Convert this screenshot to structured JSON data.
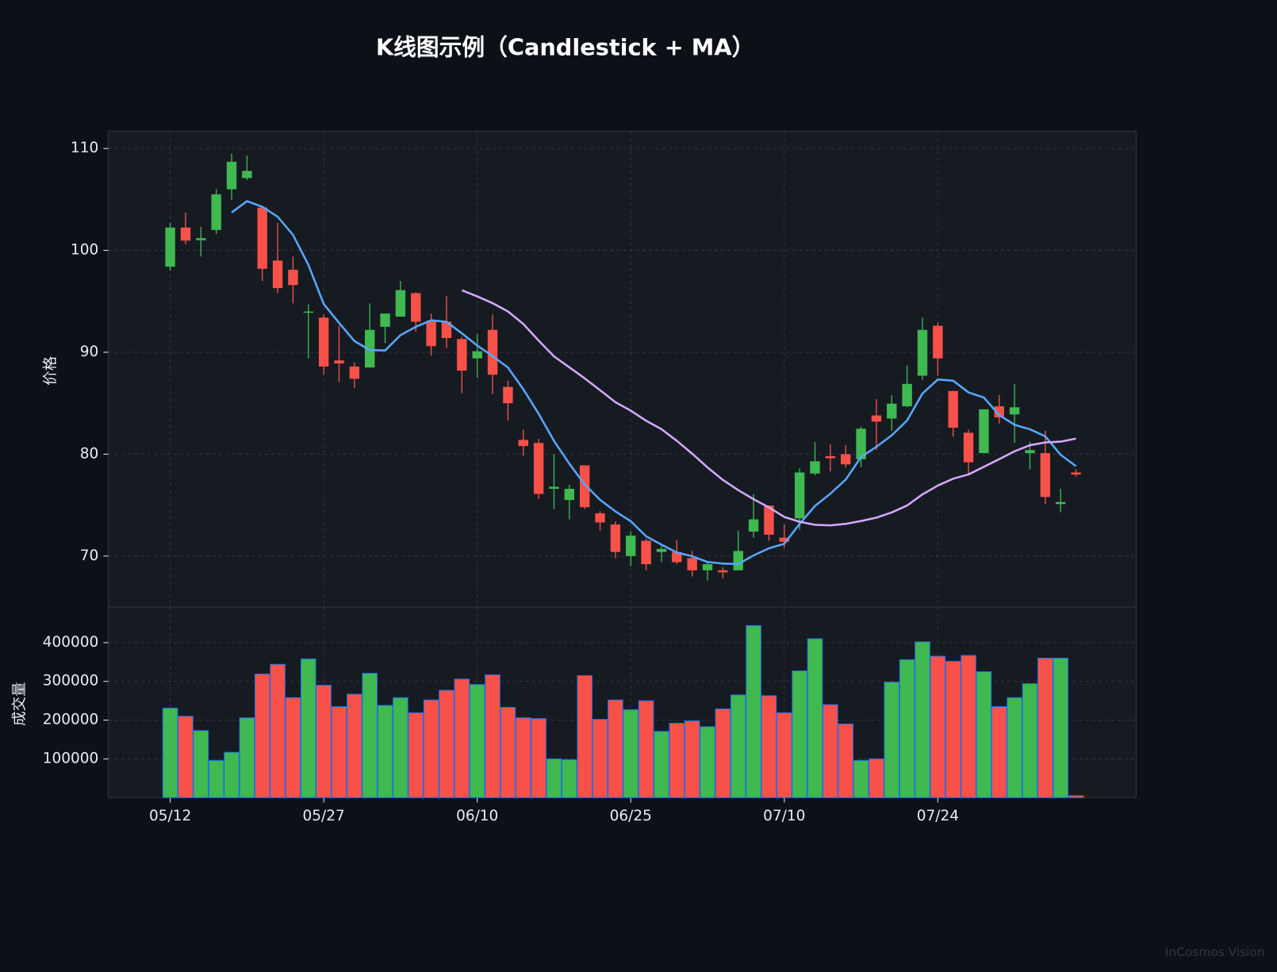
{
  "chart_data": {
    "type": "candlestick",
    "title": "K线图示例（Candlestick + MA）",
    "ylabel": "价格",
    "categories": [
      "05/12",
      null,
      null,
      null,
      null,
      null,
      null,
      null,
      null,
      null,
      "05/27",
      null,
      null,
      null,
      null,
      null,
      null,
      null,
      null,
      null,
      "06/10",
      null,
      null,
      null,
      null,
      null,
      null,
      null,
      null,
      null,
      "06/25",
      null,
      null,
      null,
      null,
      null,
      null,
      null,
      null,
      null,
      "07/10",
      null,
      null,
      null,
      null,
      null,
      null,
      null,
      null,
      null,
      "07/24",
      null,
      null,
      null,
      null,
      null,
      null,
      null,
      null,
      null
    ],
    "open": [
      98.4,
      102.24,
      101.0,
      102.0,
      106.0,
      107.1,
      104.2,
      99.0,
      98.1,
      93.9,
      93.4,
      89.2,
      88.6,
      88.5,
      92.5,
      93.5,
      95.8,
      93.1,
      93.0,
      91.3,
      89.4,
      92.2,
      86.6,
      81.4,
      81.1,
      76.6,
      75.5,
      78.9,
      74.2,
      73.1,
      70.0,
      71.5,
      70.4,
      70.4,
      69.8,
      68.6,
      68.6,
      68.6,
      72.4,
      74.96,
      71.8,
      73.7,
      78.1,
      79.8,
      80.0,
      79.5,
      83.8,
      83.5,
      84.7,
      87.7,
      92.6,
      86.2,
      82.1,
      80.1,
      84.7,
      83.9,
      80.1,
      80.1,
      75.1,
      78.2
    ],
    "high": [
      102.7,
      103.7,
      102.3,
      106.0,
      109.5,
      109.3,
      104.2,
      102.7,
      99.4,
      94.7,
      93.7,
      92.6,
      89.0,
      94.8,
      93.8,
      97.0,
      95.9,
      93.8,
      95.5,
      91.5,
      91.8,
      93.7,
      87.2,
      82.4,
      81.5,
      80.0,
      77.0,
      78.9,
      74.4,
      73.4,
      72.4,
      71.7,
      71.0,
      71.6,
      70.5,
      69.4,
      68.9,
      72.5,
      76.1,
      74.96,
      73.1,
      78.6,
      81.2,
      80.96,
      80.9,
      82.7,
      85.4,
      85.8,
      88.7,
      93.4,
      92.9,
      86.2,
      82.4,
      84.4,
      85.8,
      86.9,
      81.2,
      82.3,
      76.6,
      78.5
    ],
    "low": [
      98.0,
      100.6,
      99.4,
      101.6,
      104.96,
      106.9,
      97.0,
      95.8,
      94.8,
      89.4,
      87.8,
      87.1,
      86.5,
      88.5,
      90.9,
      93.5,
      92.0,
      89.7,
      90.4,
      86.0,
      87.5,
      85.9,
      83.3,
      79.8,
      75.6,
      74.6,
      73.6,
      74.6,
      72.5,
      69.8,
      69.0,
      68.6,
      69.4,
      69.2,
      68.0,
      67.6,
      67.8,
      68.6,
      71.8,
      71.5,
      70.8,
      72.6,
      77.9,
      78.3,
      78.7,
      78.7,
      80.4,
      82.3,
      84.6,
      87.3,
      87.7,
      81.7,
      78.1,
      80.1,
      83.0,
      81.1,
      78.5,
      75.1,
      74.3,
      77.8
    ],
    "close": [
      102.24,
      100.96,
      101.2,
      105.5,
      108.7,
      107.8,
      98.2,
      96.3,
      96.6,
      94.0,
      88.6,
      88.9,
      87.4,
      92.2,
      93.8,
      96.1,
      93.0,
      90.6,
      91.4,
      88.2,
      90.1,
      87.8,
      85.0,
      80.8,
      76.1,
      76.8,
      76.6,
      74.8,
      73.3,
      70.4,
      72.0,
      69.2,
      70.7,
      69.4,
      68.6,
      69.2,
      68.4,
      70.5,
      73.6,
      72.1,
      71.4,
      78.2,
      79.3,
      79.6,
      79.0,
      82.5,
      83.2,
      84.96,
      86.9,
      92.2,
      89.4,
      82.6,
      79.2,
      84.4,
      83.6,
      84.6,
      80.4,
      75.8,
      75.3,
      78.0
    ],
    "up_color": "#3fb950",
    "down_color": "#f85149",
    "series": [
      {
        "color": "#58a6ff",
        "values": [
          null,
          null,
          null,
          null,
          103.72,
          104.83,
          104.28,
          103.3,
          101.52,
          98.58,
          94.74,
          92.88,
          91.1,
          90.22,
          90.18,
          91.68,
          92.5,
          93.14,
          92.98,
          91.86,
          90.66,
          89.62,
          88.5,
          86.38,
          83.96,
          81.3,
          79.06,
          77.02,
          75.52,
          74.38,
          73.42,
          71.94,
          71.12,
          70.34,
          69.98,
          69.42,
          69.26,
          69.22,
          70.06,
          70.76,
          71.2,
          73.16,
          74.92,
          76.12,
          77.5,
          79.72,
          80.72,
          81.85,
          83.31,
          85.95,
          87.33,
          87.21,
          86.06,
          85.56,
          83.84,
          82.88,
          82.44,
          81.76,
          79.94,
          78.82
        ]
      },
      {
        "color": "#d2a8ff",
        "values": [
          null,
          null,
          null,
          null,
          null,
          null,
          null,
          null,
          null,
          null,
          null,
          null,
          null,
          null,
          null,
          null,
          null,
          null,
          null,
          96.09,
          95.48,
          94.82,
          94.01,
          92.78,
          91.15,
          89.6,
          88.52,
          87.44,
          86.28,
          85.1,
          84.27,
          83.28,
          82.45,
          81.31,
          80.05,
          78.7,
          77.47,
          76.47,
          75.58,
          74.77,
          73.84,
          73.36,
          73.07,
          73.01,
          73.16,
          73.44,
          73.77,
          74.28,
          74.96,
          76.05,
          76.92,
          77.59,
          78.01,
          78.76,
          79.51,
          80.28,
          80.88,
          81.15,
          81.23,
          81.53
        ]
      }
    ],
    "ylim": [
      65,
      111.7
    ],
    "yticks": [
      70,
      80,
      90,
      100,
      110
    ],
    "grid": true,
    "volume": {
      "ylabel": "成交量",
      "values": [
        231000,
        210000,
        173000,
        96000,
        117000,
        206000,
        319000,
        344000,
        258000,
        358000,
        290000,
        235000,
        267000,
        321000,
        238000,
        258000,
        219000,
        252000,
        277000,
        306000,
        292000,
        317000,
        233000,
        206000,
        204000,
        100000,
        98000,
        315000,
        202000,
        252000,
        227000,
        250000,
        171000,
        192000,
        198000,
        183000,
        229000,
        265000,
        444000,
        263000,
        219000,
        327000,
        410000,
        240000,
        190000,
        96000,
        100000,
        298000,
        356000,
        402000,
        365000,
        352000,
        367000,
        325000,
        235000,
        258000,
        294000,
        360000,
        360000,
        5000
      ],
      "edge_color": "#1f6feb",
      "ylim": [
        0,
        492000
      ],
      "yticks": [
        100000,
        200000,
        300000,
        400000
      ]
    }
  },
  "footer": {
    "watermark": "InCosmos Vision"
  }
}
